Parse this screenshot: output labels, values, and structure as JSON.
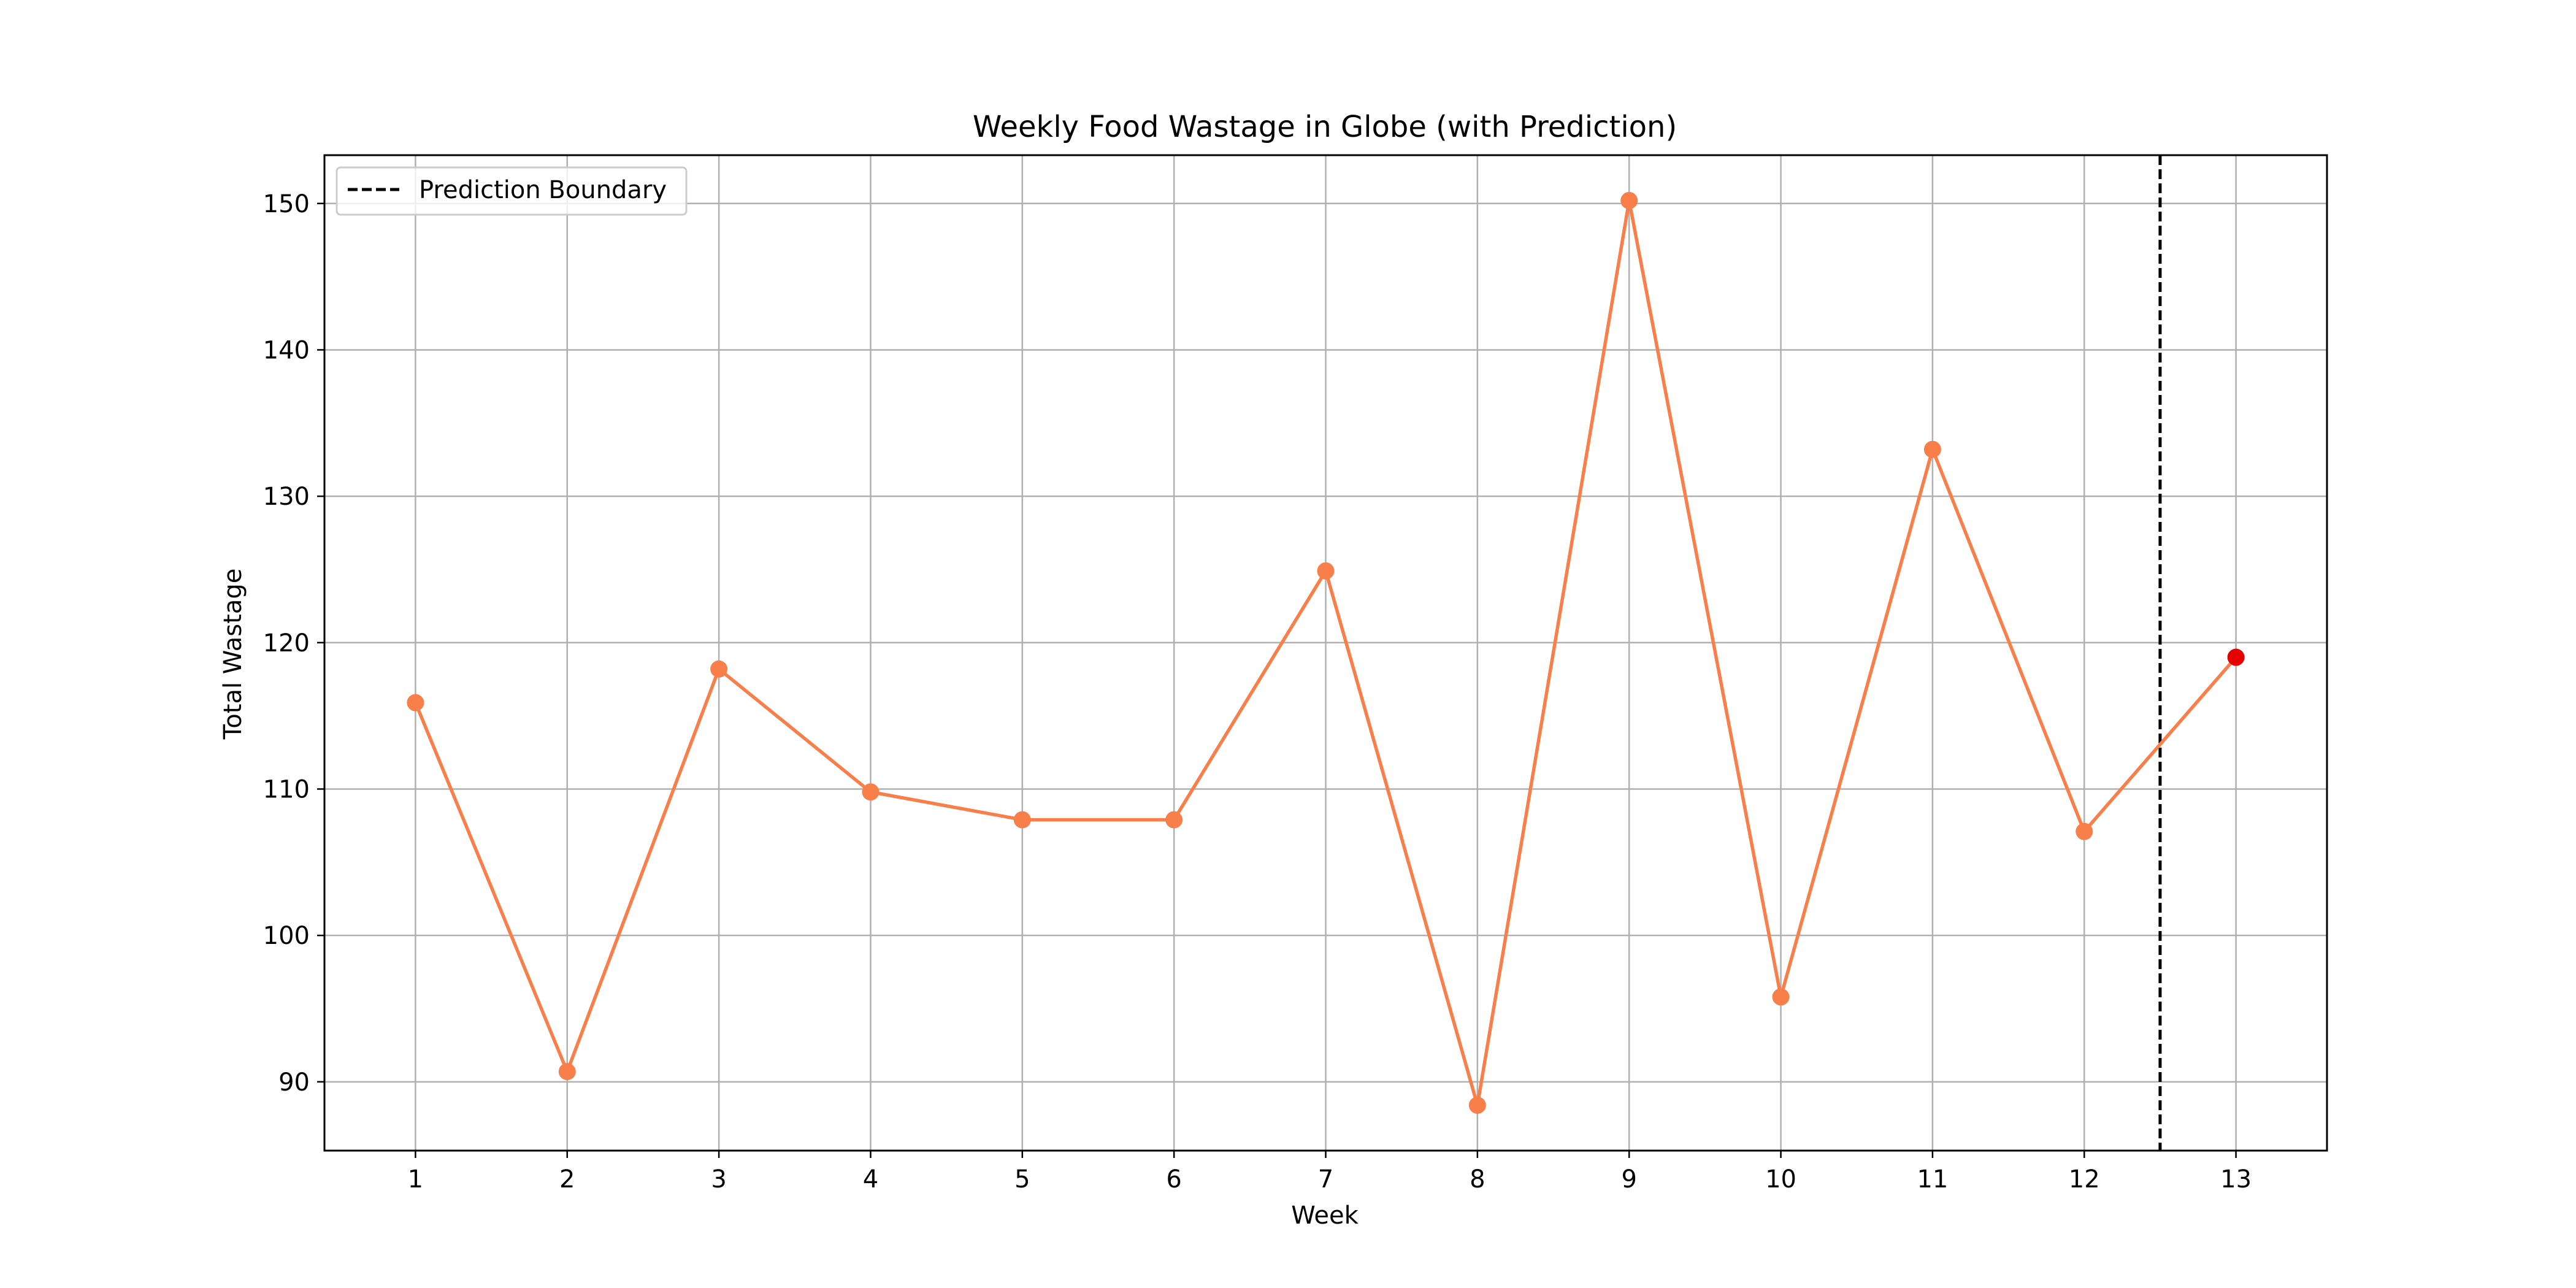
{
  "chart_data": {
    "type": "line",
    "title": "Weekly Food Wastage in Globe (with Prediction)",
    "xlabel": "Week",
    "ylabel": "Total Wastage",
    "x": [
      1,
      2,
      3,
      4,
      5,
      6,
      7,
      8,
      9,
      10,
      11,
      12,
      13
    ],
    "x_ticks": [
      "1",
      "2",
      "3",
      "4",
      "5",
      "6",
      "7",
      "8",
      "9",
      "10",
      "11",
      "12",
      "13"
    ],
    "y_ticks": [
      "90",
      "100",
      "110",
      "120",
      "130",
      "140",
      "150"
    ],
    "xlim": [
      0.4,
      13.6
    ],
    "ylim": [
      85.3,
      153.3
    ],
    "series": [
      {
        "values": [
          115.9,
          90.7,
          118.2,
          109.8,
          107.9,
          107.9,
          124.9,
          88.4,
          150.2,
          95.8,
          133.2,
          107.1,
          119.0
        ],
        "color": "#f97f4a",
        "marker_colors": [
          "#f97f4a",
          "#f97f4a",
          "#f97f4a",
          "#f97f4a",
          "#f97f4a",
          "#f97f4a",
          "#f97f4a",
          "#f97f4a",
          "#f97f4a",
          "#f97f4a",
          "#f97f4a",
          "#f97f4a",
          "#e50000"
        ]
      }
    ],
    "prediction_boundary": {
      "x": 12.5,
      "label": "Prediction Boundary",
      "color": "#000000",
      "style": "dashed"
    },
    "legend": {
      "placement": "top-left",
      "entries": [
        "Prediction Boundary"
      ]
    },
    "grid": true
  }
}
